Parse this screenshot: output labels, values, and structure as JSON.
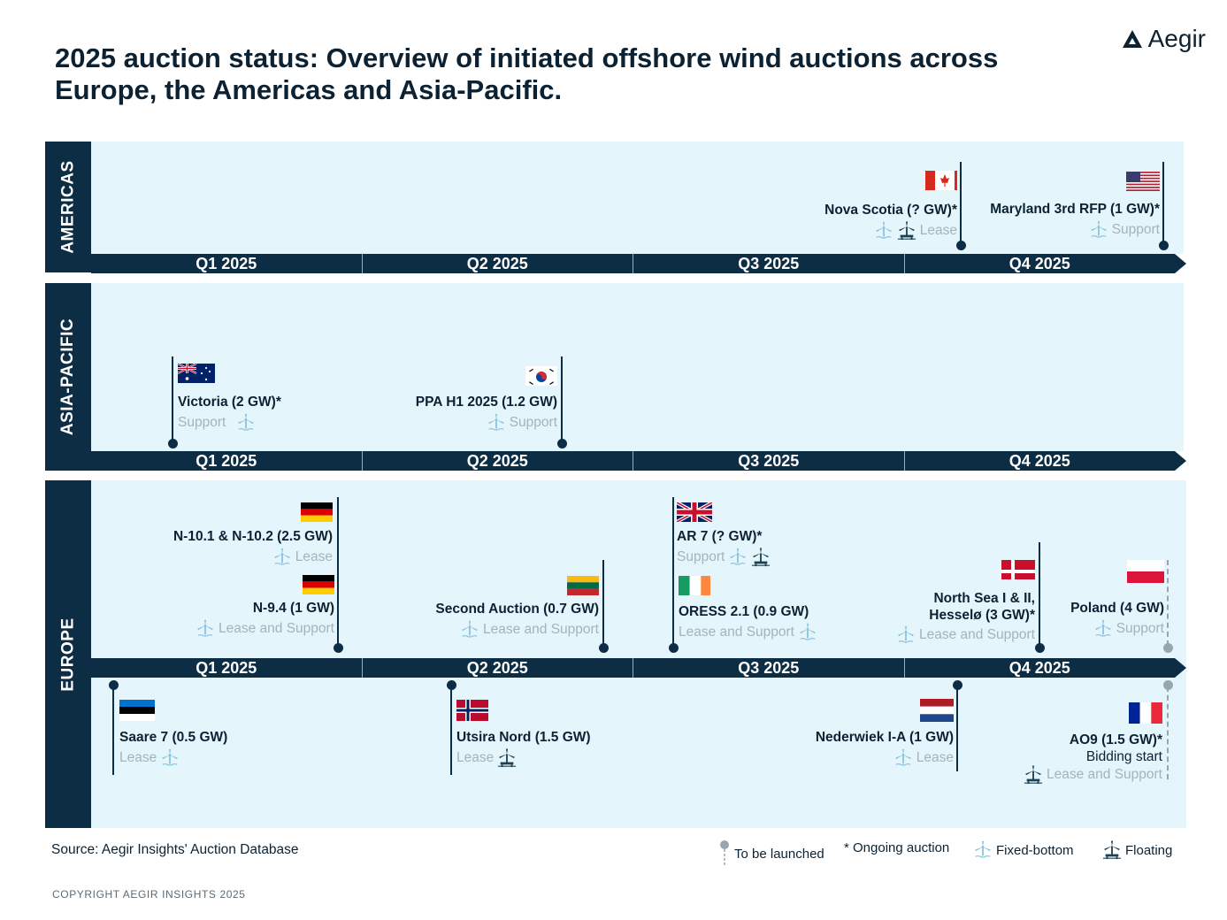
{
  "title": "2025 auction status: Overview of initiated offshore wind auctions across Europe, the Americas and Asia-Pacific.",
  "logo": {
    "text": "Aegir"
  },
  "quarters": [
    "Q1 2025",
    "Q2 2025",
    "Q3 2025",
    "Q4 2025"
  ],
  "regions": {
    "americas": {
      "label": "AMERICAS",
      "auctions": [
        {
          "name": "Nova Scotia (? GW)*",
          "type": "Lease",
          "country": "Canada"
        },
        {
          "name": "Maryland 3rd RFP (1 GW)*",
          "type": "Support",
          "country": "United States"
        }
      ]
    },
    "asia_pacific": {
      "label": "ASIA-PACIFIC",
      "auctions": [
        {
          "name": "Victoria (2 GW)*",
          "type": "Support",
          "country": "Australia"
        },
        {
          "name": "PPA H1 2025 (1.2 GW)",
          "type": "Support",
          "country": "South Korea"
        }
      ]
    },
    "europe": {
      "label": "EUROPE",
      "auctions": [
        {
          "name": "N-10.1 & N-10.2 (2.5 GW)",
          "type": "Lease",
          "country": "Germany"
        },
        {
          "name": "N-9.4 (1 GW)",
          "type": "Lease and Support",
          "country": "Germany"
        },
        {
          "name": "Second Auction (0.7 GW)",
          "type": "Lease and Support",
          "country": "Lithuania"
        },
        {
          "name": "AR 7 (? GW)*",
          "type": "Support",
          "country": "United Kingdom"
        },
        {
          "name": "ORESS 2.1 (0.9 GW)",
          "type": "Lease and Support",
          "country": "Ireland"
        },
        {
          "name_line1": "North Sea I & II,",
          "name_line2": "Hesselø (3 GW)*",
          "type": "Lease and Support",
          "country": "Denmark"
        },
        {
          "name": "Poland (4 GW)",
          "type": "Support",
          "country": "Poland"
        },
        {
          "name": "Saare 7 (0.5 GW)",
          "type": "Lease",
          "country": "Estonia"
        },
        {
          "name": "Utsira Nord (1.5 GW)",
          "type": "Lease",
          "country": "Norway"
        },
        {
          "name": "Nederwiek I-A (1 GW)",
          "type": "Lease",
          "country": "Netherlands"
        },
        {
          "name": "AO9 (1.5 GW)*",
          "sub": "Bidding start",
          "type": "Lease and Support",
          "country": "France"
        }
      ]
    }
  },
  "footer": {
    "source": "Source: Aegir Insights' Auction Database",
    "copyright": "COPYRIGHT AEGIR INSIGHTS 2025"
  },
  "legend": {
    "to_be_launched": "To be launched",
    "ongoing": "* Ongoing auction",
    "fixed_bottom": "Fixed-bottom",
    "floating": "Floating"
  },
  "colors": {
    "navy": "#0d2d45",
    "panel": "#e4f5fc",
    "muted": "#a7b3ba",
    "fixed_icon": "#8cc4dd"
  }
}
